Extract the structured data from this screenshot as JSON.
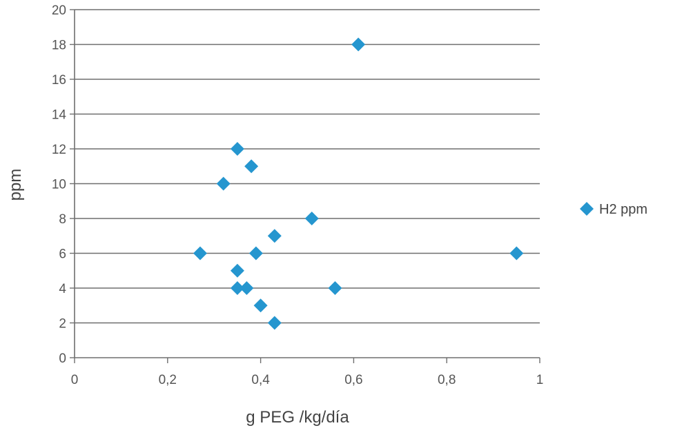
{
  "chart_data": {
    "type": "scatter",
    "title": "",
    "xlabel": "g PEG /kg/día",
    "ylabel": "ppm",
    "xlim": [
      0,
      1
    ],
    "ylim": [
      0,
      20
    ],
    "x_ticks": [
      "0",
      "0,2",
      "0,4",
      "0,6",
      "0,8",
      "1"
    ],
    "y_ticks": [
      "0",
      "2",
      "4",
      "6",
      "8",
      "10",
      "12",
      "14",
      "16",
      "18",
      "20"
    ],
    "grid": "horizontal",
    "legend_position": "right",
    "series": [
      {
        "name": "H2 ppm",
        "color": "#2596cf",
        "marker": "diamond",
        "points": [
          {
            "x": 0.61,
            "y": 18
          },
          {
            "x": 0.35,
            "y": 12
          },
          {
            "x": 0.38,
            "y": 11
          },
          {
            "x": 0.32,
            "y": 10
          },
          {
            "x": 0.51,
            "y": 8
          },
          {
            "x": 0.43,
            "y": 7
          },
          {
            "x": 0.27,
            "y": 6
          },
          {
            "x": 0.39,
            "y": 6
          },
          {
            "x": 0.95,
            "y": 6
          },
          {
            "x": 0.35,
            "y": 5
          },
          {
            "x": 0.35,
            "y": 4
          },
          {
            "x": 0.37,
            "y": 4
          },
          {
            "x": 0.56,
            "y": 4
          },
          {
            "x": 0.4,
            "y": 3
          },
          {
            "x": 0.43,
            "y": 2
          }
        ]
      }
    ]
  }
}
